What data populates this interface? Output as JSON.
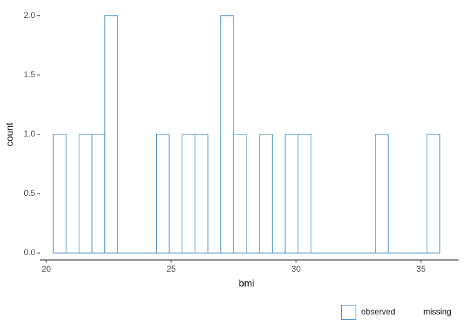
{
  "chart_data": {
    "type": "histogram",
    "x_label": "bmi",
    "y_label": "count",
    "bins": [
      20.28,
      20.796,
      21.311,
      21.827,
      22.343,
      22.858,
      23.374,
      23.89,
      24.406,
      24.921,
      25.437,
      25.953,
      26.468,
      26.984,
      27.5,
      28.015,
      28.531,
      29.047,
      29.563,
      30.078,
      30.594,
      31.11,
      31.625,
      32.141,
      32.657,
      33.173,
      33.688,
      34.204,
      34.72,
      35.235,
      35.751
    ],
    "series": [
      {
        "name": "observed",
        "color": "#4a8fc8",
        "values": [
          1,
          0,
          1,
          1,
          2,
          0,
          0,
          0,
          1,
          0,
          1,
          1,
          0,
          2,
          1,
          0,
          1,
          0,
          1,
          1,
          0,
          0,
          0,
          0,
          0,
          1,
          0,
          0,
          0,
          1
        ]
      },
      {
        "name": "missing",
        "color": "none"
      }
    ],
    "xlim": [
      19.75,
      36.5
    ],
    "xticks": [
      20,
      25,
      30,
      35
    ],
    "ylim": [
      -0.058,
      2.08
    ],
    "yticks": [
      {
        "value": 0,
        "label": "0.0"
      },
      {
        "value": 0.5,
        "label": "0.5"
      },
      {
        "value": 1,
        "label": "1.0"
      },
      {
        "value": 1.5,
        "label": "1.5"
      },
      {
        "value": 2,
        "label": "2.0"
      }
    ],
    "grid": false,
    "legend": "bottom-right"
  }
}
